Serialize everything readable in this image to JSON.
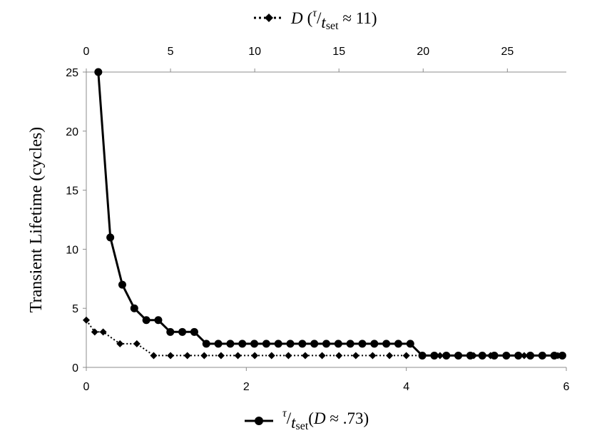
{
  "chart_data": {
    "type": "line",
    "ylabel": "Transient Lifetime (cycles)",
    "ylim": [
      0,
      25
    ],
    "yticks": [
      "0",
      "5",
      "10",
      "15",
      "20",
      "25"
    ],
    "bottom_axis": {
      "xlim": [
        0,
        6
      ],
      "ticks": [
        "0",
        "2",
        "4",
        "6"
      ]
    },
    "top_axis": {
      "xlim": [
        0,
        28.5
      ],
      "ticks": [
        "0",
        "5",
        "10",
        "15",
        "20",
        "25"
      ]
    },
    "grid": false,
    "legend_top": {
      "position": "top-center",
      "var": "D",
      "open": "(",
      "tau": "τ",
      "slash": "/",
      "t": "t",
      "sub": "set",
      "rest": " ≈ 11)"
    },
    "legend_bottom": {
      "position": "bottom-center",
      "tau": "τ",
      "slash": "/",
      "t": "t",
      "sub": "set",
      "open": "(",
      "var": "D",
      "rest": " ≈ .73)"
    },
    "series": [
      {
        "axis": "bottom",
        "style": "solid",
        "marker": "circle",
        "color": "#000000",
        "x": [
          0.15,
          0.3,
          0.45,
          0.6,
          0.75,
          0.9,
          1.05,
          1.2,
          1.35,
          1.5,
          1.65,
          1.8,
          1.95,
          2.1,
          2.25,
          2.4,
          2.55,
          2.7,
          2.85,
          3.0,
          3.15,
          3.3,
          3.45,
          3.6,
          3.75,
          3.9,
          4.05,
          4.2,
          4.35,
          4.5,
          4.65,
          4.8,
          4.95,
          5.1,
          5.25,
          5.4,
          5.55,
          5.7,
          5.85,
          5.95
        ],
        "y": [
          25,
          11,
          7,
          5,
          4,
          4,
          3,
          3,
          3,
          2,
          2,
          2,
          2,
          2,
          2,
          2,
          2,
          2,
          2,
          2,
          2,
          2,
          2,
          2,
          2,
          2,
          2,
          1,
          1,
          1,
          1,
          1,
          1,
          1,
          1,
          1,
          1,
          1,
          1,
          1
        ]
      },
      {
        "axis": "top",
        "style": "dotted",
        "marker": "diamond",
        "color": "#000000",
        "x": [
          0,
          0.5,
          1.0,
          2.0,
          3.0,
          4.0,
          5.0,
          6.0,
          7.0,
          8.0,
          9.0,
          10.0,
          11.0,
          12.0,
          13.0,
          14.0,
          15.0,
          16.0,
          17.0,
          18.0,
          19.0,
          20.0,
          21.0,
          22.0,
          23.0,
          24.0,
          25.0,
          26.0,
          27.0,
          28.0
        ],
        "y": [
          4,
          3,
          3,
          2,
          2,
          1,
          1,
          1,
          1,
          1,
          1,
          1,
          1,
          1,
          1,
          1,
          1,
          1,
          1,
          1,
          1,
          1,
          1,
          1,
          1,
          1,
          1,
          1,
          1,
          1
        ]
      }
    ]
  }
}
